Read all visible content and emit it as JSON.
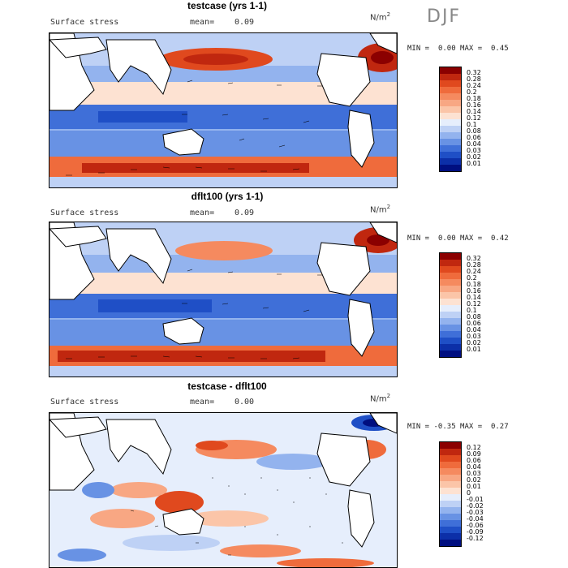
{
  "season": "DJF",
  "units_base": "N/m",
  "units_exp": "2",
  "field_label": "Surface stress",
  "panels": [
    {
      "title": "testcase (yrs 1-1)",
      "mean_label": "mean=",
      "mean_value": "0.09",
      "min_label": "MIN =",
      "min_value": "0.00",
      "max_label": "MAX =",
      "max_value": "0.45",
      "legend": [
        "0.32",
        "0.28",
        "0.24",
        "0.2",
        "0.18",
        "0.16",
        "0.14",
        "0.12",
        "0.1",
        "0.08",
        "0.06",
        "0.04",
        "0.03",
        "0.02",
        "0.01"
      ],
      "colors": [
        "#8b0000",
        "#c0270f",
        "#e0491e",
        "#ef6b3c",
        "#f58a5f",
        "#f8a783",
        "#fbc5a8",
        "#fde2d2",
        "#e6eefc",
        "#bed1f5",
        "#93b3ee",
        "#6892e4",
        "#3f6fd8",
        "#1f4fc6",
        "#0c2fa8",
        "#000f80"
      ]
    },
    {
      "title": "dflt100 (yrs 1-1)",
      "mean_label": "mean=",
      "mean_value": "0.09",
      "min_label": "MIN =",
      "min_value": "0.00",
      "max_label": "MAX =",
      "max_value": "0.42",
      "legend": [
        "0.32",
        "0.28",
        "0.24",
        "0.2",
        "0.18",
        "0.16",
        "0.14",
        "0.12",
        "0.1",
        "0.08",
        "0.06",
        "0.04",
        "0.03",
        "0.02",
        "0.01"
      ],
      "colors": [
        "#8b0000",
        "#c0270f",
        "#e0491e",
        "#ef6b3c",
        "#f58a5f",
        "#f8a783",
        "#fbc5a8",
        "#fde2d2",
        "#e6eefc",
        "#bed1f5",
        "#93b3ee",
        "#6892e4",
        "#3f6fd8",
        "#1f4fc6",
        "#0c2fa8",
        "#000f80"
      ]
    },
    {
      "title": "testcase - dflt100",
      "mean_label": "mean=",
      "mean_value": "0.00",
      "min_label": "MIN =",
      "min_value": "-0.35",
      "max_label": "MAX =",
      "max_value": "0.27",
      "legend": [
        "0.12",
        "0.09",
        "0.06",
        "0.04",
        "0.03",
        "0.02",
        "0.01",
        "0",
        "-0.01",
        "-0.02",
        "-0.03",
        "-0.04",
        "-0.06",
        "-0.09",
        "-0.12"
      ],
      "colors": [
        "#8b0000",
        "#c0270f",
        "#e0491e",
        "#ef6b3c",
        "#f58a5f",
        "#f8a783",
        "#fbc5a8",
        "#fde2d2",
        "#e6eefc",
        "#bed1f5",
        "#93b3ee",
        "#6892e4",
        "#3f6fd8",
        "#1f4fc6",
        "#0c2fa8",
        "#000f80"
      ]
    }
  ]
}
